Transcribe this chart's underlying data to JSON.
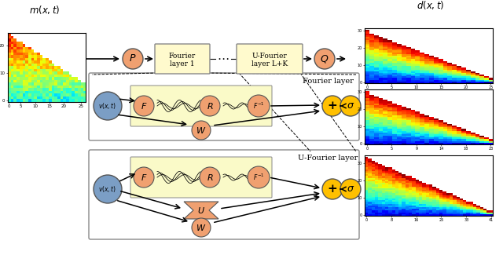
{
  "bg_color": "#ffffff",
  "salmon_color": "#F0A070",
  "blue_circle_color": "#7B9EC5",
  "yellow_box_color": "#FAFAC8",
  "yellow_circle_color": "#FFC000",
  "fourier_layer_text": "Fourier layer",
  "u_fourier_layer_text": "U-Fourier layer",
  "fourier_box1_text": "Fourier\nlayer 1",
  "fourier_boxLK_text": "U-Fourier\nlayer L+K"
}
